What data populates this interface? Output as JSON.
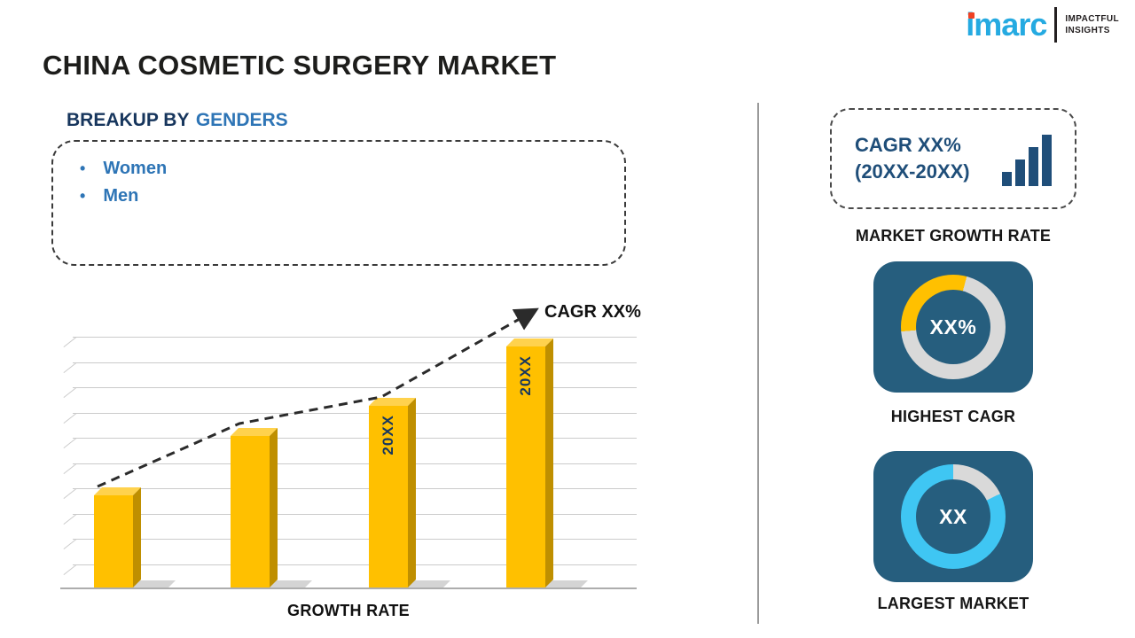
{
  "colors": {
    "bar_gold": "#FFC000",
    "card_bg": "#265e7e",
    "donut_yellow": "#FFC000",
    "donut_cyan": "#3fc6f3",
    "donut_gray": "#d9d9d9",
    "logo_cyan": "#25aae1",
    "accent_navy": "#1f4e79",
    "heading_navy": "#17365d",
    "breakup_blue": "#2e75b6"
  },
  "logo": {
    "brand": "imarc",
    "tagline_line1": "IMPACTFUL",
    "tagline_line2": "INSIGHTS"
  },
  "title": "CHINA COSMETIC SURGERY MARKET",
  "breakup": {
    "heading_prefix": "BREAKUP BY",
    "heading_highlight": "GENDERS",
    "items": [
      "Women",
      "Men"
    ]
  },
  "chart_data": {
    "type": "bar",
    "categories": [
      "",
      "",
      "20XX",
      "20XX"
    ],
    "values": [
      40,
      66,
      79,
      105
    ],
    "ylim": [
      0,
      110
    ],
    "grid": true,
    "title": "",
    "xlabel": "GROWTH RATE",
    "ylabel": "",
    "trend_label": "CAGR XX%",
    "bar_color": "#FFC000"
  },
  "sidebar": {
    "growth_card": {
      "line1": "CAGR XX%",
      "line2": "(20XX-20XX)"
    },
    "growth_label": "MARKET GROWTH RATE",
    "highest_cagr": {
      "value": "XX%",
      "label": "HIGHEST CAGR"
    },
    "largest_market": {
      "value": "XX",
      "label": "LARGEST MARKET"
    }
  }
}
